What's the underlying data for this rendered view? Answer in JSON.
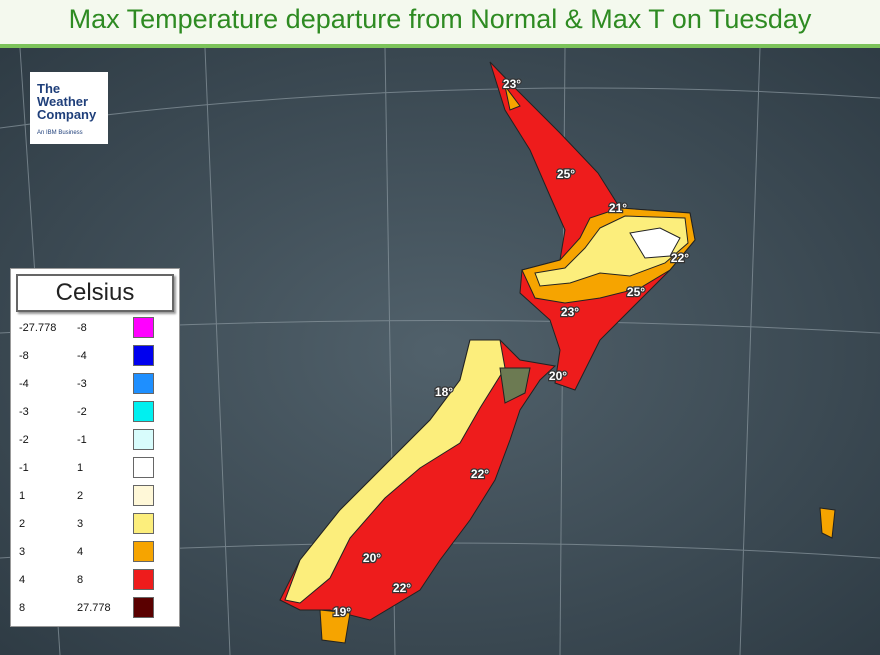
{
  "title": "Max Temperature departure from Normal & Max T on Tuesday",
  "logo": {
    "name": "The Weather Company",
    "subtitle": "An IBM Business"
  },
  "legend": {
    "title": "Celsius",
    "rows": [
      {
        "from": -27.778,
        "to": -8,
        "color": "#ff00ff"
      },
      {
        "from": -8,
        "to": -4,
        "color": "#0000ee"
      },
      {
        "from": -4,
        "to": -3,
        "color": "#1e8fff"
      },
      {
        "from": -3,
        "to": -2,
        "color": "#00f0f0"
      },
      {
        "from": -2,
        "to": -1,
        "color": "#d8fcfc"
      },
      {
        "from": -1,
        "to": 1,
        "color": "#ffffff"
      },
      {
        "from": 1,
        "to": 2,
        "color": "#fff8d8"
      },
      {
        "from": 2,
        "to": 3,
        "color": "#fcee7c"
      },
      {
        "from": 3,
        "to": 4,
        "color": "#f6a400"
      },
      {
        "from": 4,
        "to": 8,
        "color": "#ee1c1c"
      },
      {
        "from": 8,
        "to": 27.778,
        "color": "#5a0000"
      }
    ]
  },
  "labels": [
    "23°",
    "25°",
    "21°",
    "22°",
    "25°",
    "23°",
    "20°",
    "18°",
    "22°",
    "20°",
    "22°",
    "19°"
  ]
}
